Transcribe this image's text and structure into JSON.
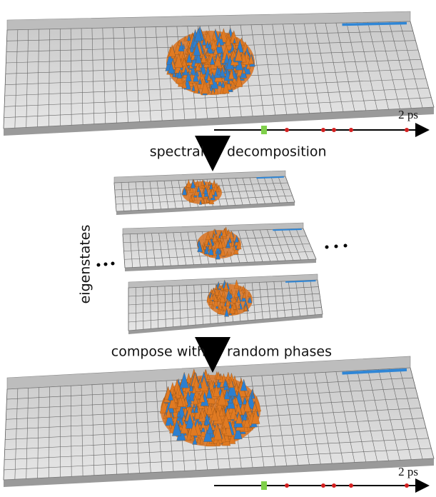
{
  "steps": {
    "decomposition": {
      "left": "spectral",
      "right": "decomposition"
    },
    "composition": {
      "left": "compose with",
      "right": "random phases"
    }
  },
  "eigenstates_label": "eigenstates",
  "timelines": [
    {
      "label": "2 ps"
    },
    {
      "label": "2 ps"
    }
  ]
}
